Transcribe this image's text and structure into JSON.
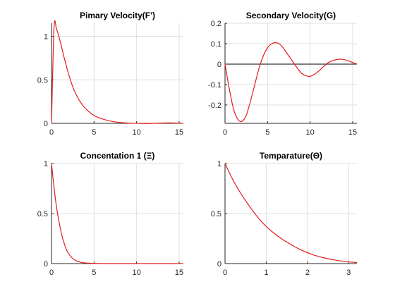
{
  "chart_data": [
    {
      "type": "line",
      "title": "Pimary Velocity(F')",
      "xlabel": "",
      "ylabel": "",
      "xlim": [
        0,
        15.5
      ],
      "ylim": [
        0,
        1.15
      ],
      "xticks": [
        0,
        5,
        10,
        15
      ],
      "xtick_labels": [
        "0",
        "5",
        "10",
        "15"
      ],
      "yticks": [
        0,
        0.5,
        1
      ],
      "ytick_labels": [
        "0",
        "0.5",
        "1"
      ],
      "grid": true,
      "zero_line": false,
      "series": [
        {
          "color": "#e31a1c",
          "x": [
            0,
            0.3,
            0.6,
            1,
            1.5,
            2,
            2.5,
            3,
            3.5,
            4,
            5,
            6,
            7,
            8,
            9,
            10,
            11,
            12,
            13,
            14,
            15,
            15.5
          ],
          "y": [
            0,
            1.1,
            1.08,
            0.95,
            0.75,
            0.57,
            0.42,
            0.31,
            0.23,
            0.17,
            0.09,
            0.05,
            0.025,
            0.01,
            0.003,
            0.0,
            -0.002,
            0.0,
            0.004,
            0.005,
            0.002,
            0.0
          ]
        }
      ]
    },
    {
      "type": "line",
      "title": "Secondary Velocity(G)",
      "xlabel": "",
      "ylabel": "",
      "xlim": [
        0,
        15.5
      ],
      "ylim": [
        -0.29,
        0.2
      ],
      "xticks": [
        0,
        5,
        10,
        15
      ],
      "xtick_labels": [
        "0",
        "5",
        "10",
        "15"
      ],
      "yticks": [
        -0.2,
        -0.1,
        0,
        0.1,
        0.2
      ],
      "ytick_labels": [
        "-0.2",
        "-0.1",
        "0",
        "0.1",
        "0.2"
      ],
      "grid": true,
      "zero_line": true,
      "series": [
        {
          "color": "#e31a1c",
          "x": [
            0,
            0.5,
            1,
            1.5,
            2,
            2.5,
            3,
            3.5,
            4,
            4.5,
            5,
            5.5,
            6,
            6.5,
            7,
            7.5,
            8,
            8.5,
            9,
            9.5,
            10,
            10.5,
            11,
            11.5,
            12,
            12.5,
            13,
            13.5,
            14,
            14.5,
            15,
            15.5
          ],
          "y": [
            0,
            -0.12,
            -0.22,
            -0.27,
            -0.28,
            -0.25,
            -0.18,
            -0.1,
            -0.02,
            0.04,
            0.08,
            0.1,
            0.105,
            0.095,
            0.07,
            0.04,
            0.01,
            -0.02,
            -0.045,
            -0.057,
            -0.06,
            -0.05,
            -0.035,
            -0.015,
            0.003,
            0.015,
            0.021,
            0.024,
            0.022,
            0.016,
            0.008,
            0.0
          ]
        }
      ]
    },
    {
      "type": "line",
      "title": "Concentation 1 (Ξ)",
      "xlabel": "",
      "ylabel": "",
      "xlim": [
        0,
        15.5
      ],
      "ylim": [
        0,
        1
      ],
      "xticks": [
        0,
        5,
        10,
        15
      ],
      "xtick_labels": [
        "0",
        "5",
        "10",
        "15"
      ],
      "yticks": [
        0,
        0.5,
        1
      ],
      "ytick_labels": [
        "0",
        "0.5",
        "1"
      ],
      "grid": true,
      "zero_line": false,
      "series": [
        {
          "color": "#e31a1c",
          "x": [
            0,
            0.25,
            0.5,
            0.75,
            1,
            1.25,
            1.5,
            1.75,
            2,
            2.5,
            3,
            3.5,
            4,
            5,
            6,
            8,
            10,
            12,
            15.5
          ],
          "y": [
            1,
            0.8,
            0.62,
            0.48,
            0.37,
            0.27,
            0.2,
            0.14,
            0.1,
            0.05,
            0.025,
            0.012,
            0.006,
            0.002,
            0.0,
            0.0,
            0.0,
            0.0,
            0.0
          ]
        }
      ]
    },
    {
      "type": "line",
      "title": "Temparature(Θ)",
      "xlabel": "",
      "ylabel": "",
      "xlim": [
        0,
        3.2
      ],
      "ylim": [
        0,
        1
      ],
      "xticks": [
        0,
        1,
        2,
        3
      ],
      "xtick_labels": [
        "0",
        "1",
        "2",
        "3"
      ],
      "yticks": [
        0,
        0.5,
        1
      ],
      "ytick_labels": [
        "0",
        "0.5",
        "1"
      ],
      "grid": true,
      "zero_line": false,
      "series": [
        {
          "color": "#e31a1c",
          "x": [
            0,
            0.2,
            0.4,
            0.6,
            0.8,
            1.0,
            1.2,
            1.4,
            1.6,
            1.8,
            2.0,
            2.2,
            2.4,
            2.6,
            2.8,
            3.0,
            3.2
          ],
          "y": [
            1,
            0.83,
            0.69,
            0.57,
            0.46,
            0.37,
            0.3,
            0.24,
            0.19,
            0.145,
            0.11,
            0.08,
            0.058,
            0.04,
            0.027,
            0.017,
            0.01
          ]
        }
      ]
    }
  ]
}
